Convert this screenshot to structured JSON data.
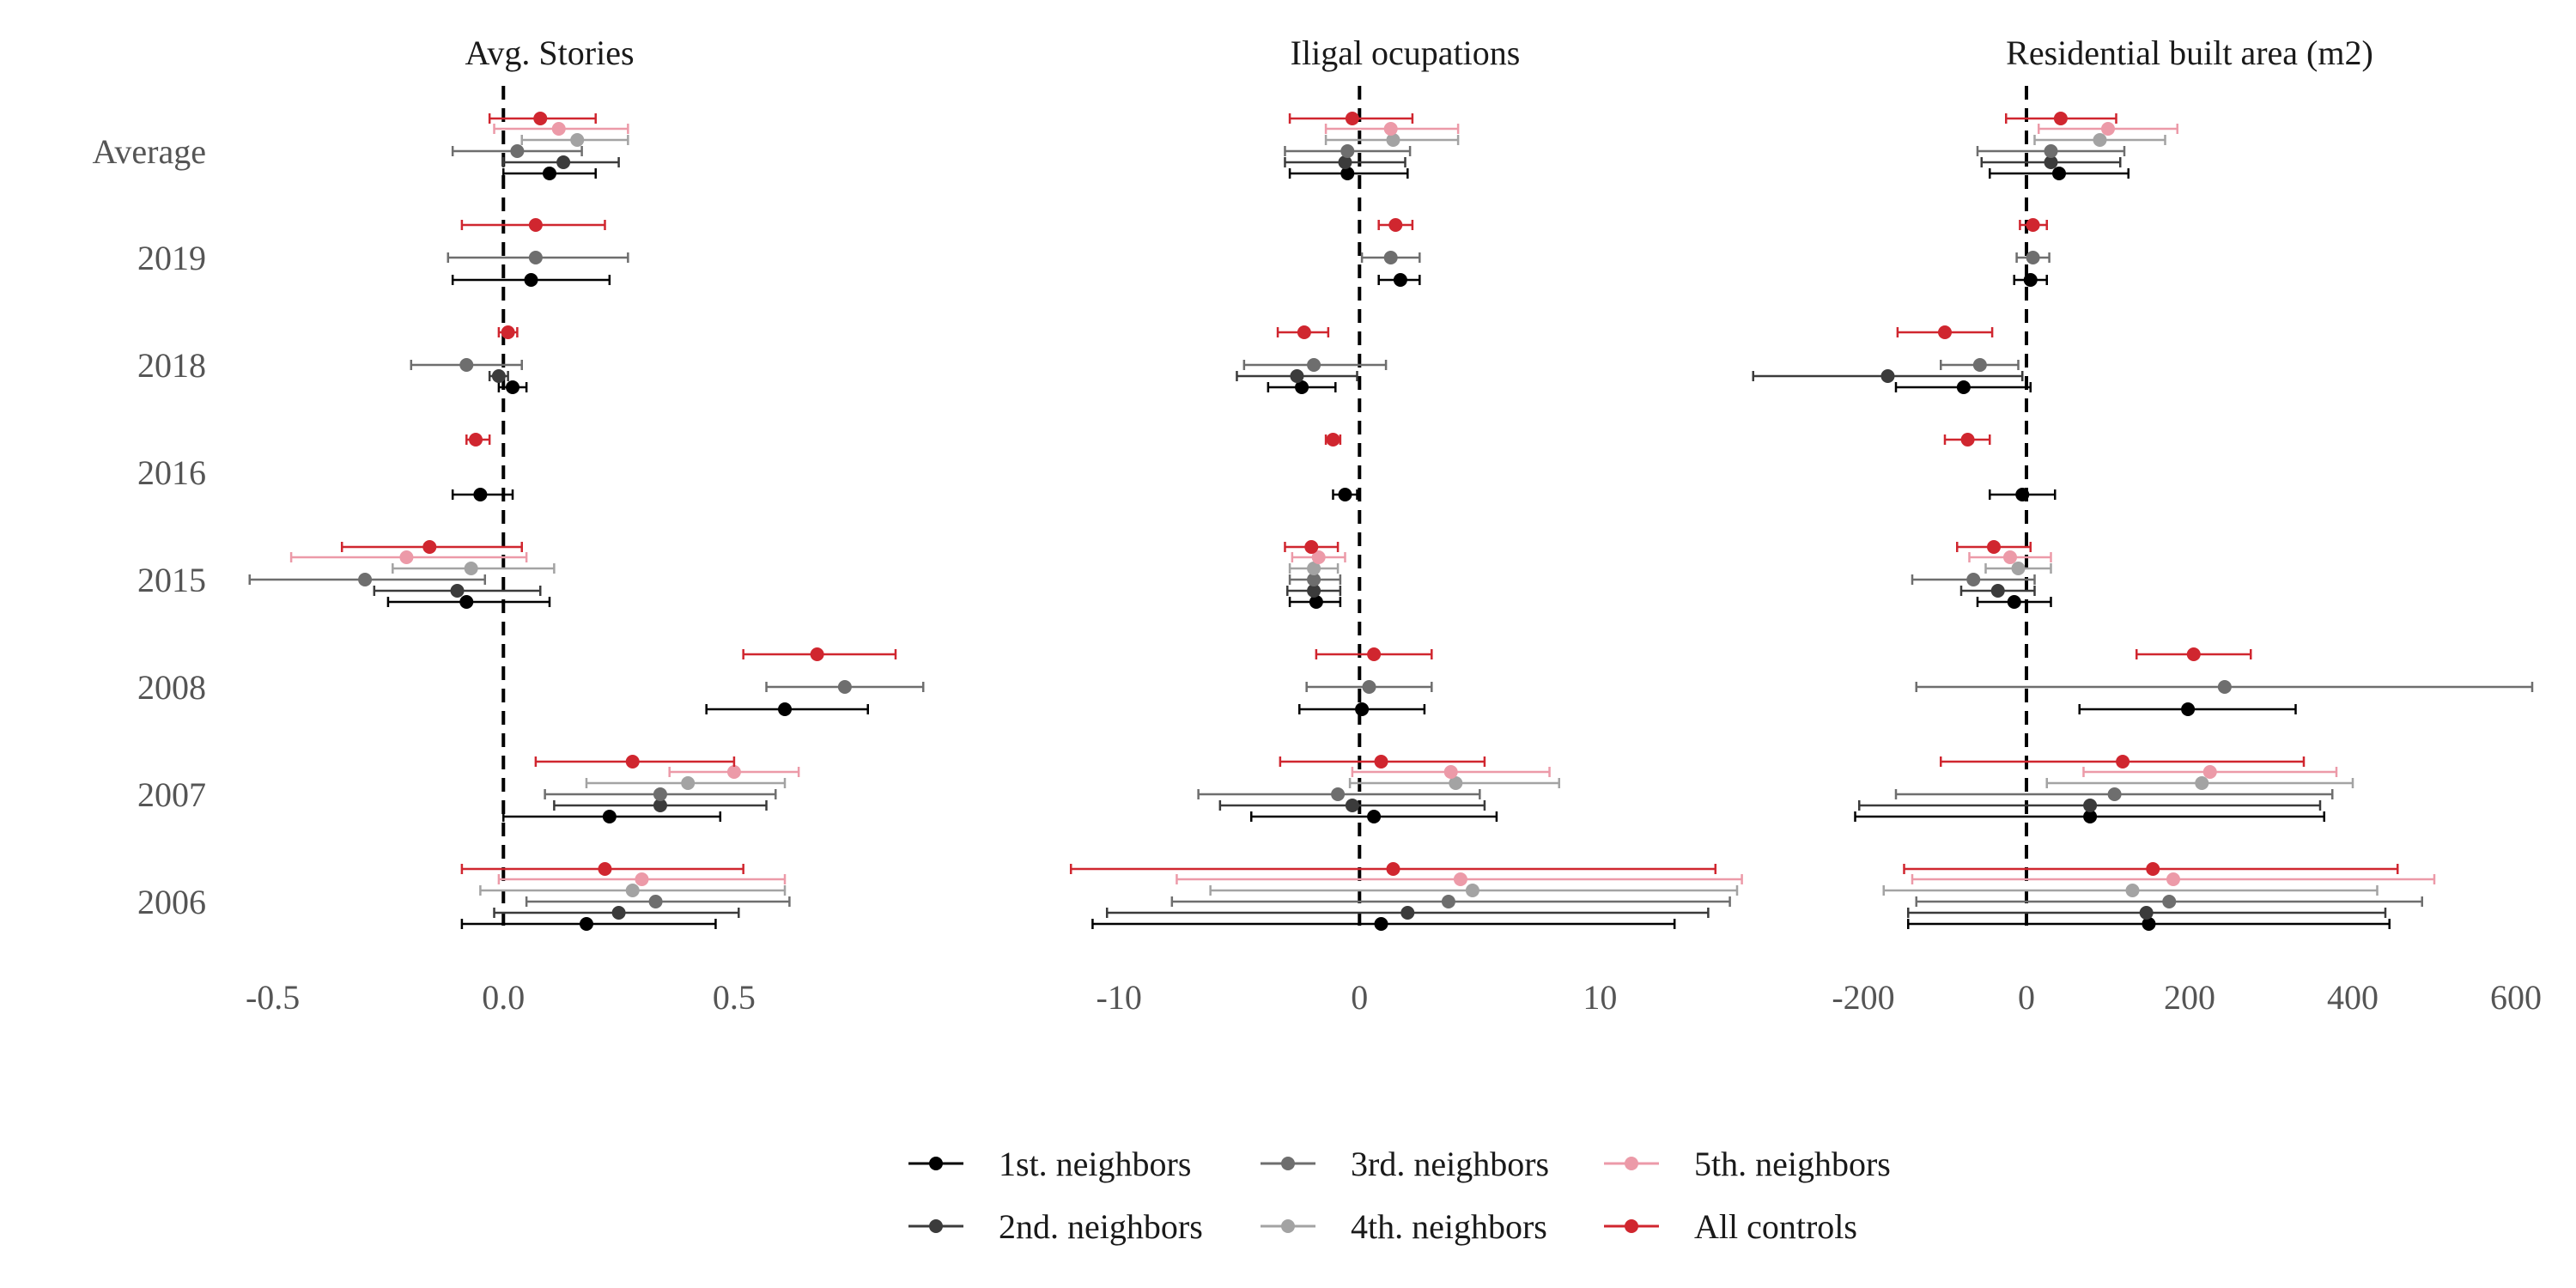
{
  "chart_data": {
    "type": "scatter",
    "subtype": "coefficient-plot-with-error-bars",
    "categories": [
      "Average",
      "2019",
      "2018",
      "2016",
      "2015",
      "2008",
      "2007",
      "2006"
    ],
    "legend": {
      "placement": "bottom",
      "entries": [
        {
          "name": "1st. neighbors",
          "color": "#000000"
        },
        {
          "name": "2nd. neighbors",
          "color": "#3b3b3b"
        },
        {
          "name": "3rd. neighbors",
          "color": "#6e6e6e"
        },
        {
          "name": "4th. neighbors",
          "color": "#a3a3a3"
        },
        {
          "name": "5th. neighbors",
          "color": "#ec9aa8"
        },
        {
          "name": "All controls",
          "color": "#d0262f"
        }
      ]
    },
    "reference_line": 0,
    "grid": false,
    "panels": [
      {
        "title": "Avg. Stories",
        "xlim": [
          -0.57,
          0.77
        ],
        "ticks": [
          -0.5,
          0.0,
          0.5
        ],
        "tick_labels": [
          "-0.5",
          "0.0",
          "0.5"
        ],
        "series": [
          {
            "name": "1st. neighbors",
            "points": [
              {
                "cat": "Average",
                "est": 0.1,
                "lo": 0.0,
                "hi": 0.2
              },
              {
                "cat": "2019",
                "est": 0.06,
                "lo": -0.11,
                "hi": 0.23
              },
              {
                "cat": "2018",
                "est": 0.02,
                "lo": -0.01,
                "hi": 0.05
              },
              {
                "cat": "2016",
                "est": -0.05,
                "lo": -0.11,
                "hi": 0.02
              },
              {
                "cat": "2015",
                "est": -0.08,
                "lo": -0.25,
                "hi": 0.1
              },
              {
                "cat": "2008",
                "est": 0.61,
                "lo": 0.44,
                "hi": 0.79
              },
              {
                "cat": "2007",
                "est": 0.23,
                "lo": 0.0,
                "hi": 0.47
              },
              {
                "cat": "2006",
                "est": 0.18,
                "lo": -0.09,
                "hi": 0.46
              }
            ]
          },
          {
            "name": "2nd. neighbors",
            "points": [
              {
                "cat": "Average",
                "est": 0.13,
                "lo": 0.0,
                "hi": 0.25
              },
              {
                "cat": "2018",
                "est": -0.01,
                "lo": -0.03,
                "hi": 0.01
              },
              {
                "cat": "2015",
                "est": -0.1,
                "lo": -0.28,
                "hi": 0.08
              },
              {
                "cat": "2007",
                "est": 0.34,
                "lo": 0.11,
                "hi": 0.57
              },
              {
                "cat": "2006",
                "est": 0.25,
                "lo": -0.02,
                "hi": 0.51
              }
            ]
          },
          {
            "name": "3rd. neighbors",
            "points": [
              {
                "cat": "Average",
                "est": 0.03,
                "lo": -0.11,
                "hi": 0.17
              },
              {
                "cat": "2019",
                "est": 0.07,
                "lo": -0.12,
                "hi": 0.27
              },
              {
                "cat": "2018",
                "est": -0.08,
                "lo": -0.2,
                "hi": 0.04
              },
              {
                "cat": "2015",
                "est": -0.3,
                "lo": -0.55,
                "hi": -0.04
              },
              {
                "cat": "2008",
                "est": 0.74,
                "lo": 0.57,
                "hi": 0.91
              },
              {
                "cat": "2007",
                "est": 0.34,
                "lo": 0.09,
                "hi": 0.59
              },
              {
                "cat": "2006",
                "est": 0.33,
                "lo": 0.05,
                "hi": 0.62
              }
            ]
          },
          {
            "name": "4th. neighbors",
            "points": [
              {
                "cat": "Average",
                "est": 0.16,
                "lo": 0.04,
                "hi": 0.27
              },
              {
                "cat": "2015",
                "est": -0.07,
                "lo": -0.24,
                "hi": 0.11
              },
              {
                "cat": "2007",
                "est": 0.4,
                "lo": 0.18,
                "hi": 0.61
              },
              {
                "cat": "2006",
                "est": 0.28,
                "lo": -0.05,
                "hi": 0.61
              }
            ]
          },
          {
            "name": "5th. neighbors",
            "points": [
              {
                "cat": "Average",
                "est": 0.12,
                "lo": -0.02,
                "hi": 0.27
              },
              {
                "cat": "2015",
                "est": -0.21,
                "lo": -0.46,
                "hi": 0.05
              },
              {
                "cat": "2007",
                "est": 0.5,
                "lo": 0.36,
                "hi": 0.64
              },
              {
                "cat": "2006",
                "est": 0.3,
                "lo": -0.01,
                "hi": 0.61
              }
            ]
          },
          {
            "name": "All controls",
            "points": [
              {
                "cat": "Average",
                "est": 0.08,
                "lo": -0.03,
                "hi": 0.2
              },
              {
                "cat": "2019",
                "est": 0.07,
                "lo": -0.09,
                "hi": 0.22
              },
              {
                "cat": "2018",
                "est": 0.01,
                "lo": -0.01,
                "hi": 0.03
              },
              {
                "cat": "2016",
                "est": -0.06,
                "lo": -0.08,
                "hi": -0.03
              },
              {
                "cat": "2015",
                "est": -0.16,
                "lo": -0.35,
                "hi": 0.04
              },
              {
                "cat": "2008",
                "est": 0.68,
                "lo": 0.52,
                "hi": 0.85
              },
              {
                "cat": "2007",
                "est": 0.28,
                "lo": 0.07,
                "hi": 0.5
              },
              {
                "cat": "2006",
                "est": 0.22,
                "lo": -0.09,
                "hi": 0.52
              }
            ]
          }
        ]
      },
      {
        "title": "Iligal ocupations",
        "xlim": [
          -12.4,
          16.2
        ],
        "ticks": [
          -10,
          0,
          10
        ],
        "tick_labels": [
          "-10",
          "0",
          "10"
        ],
        "series": [
          {
            "name": "1st. neighbors",
            "points": [
              {
                "cat": "Average",
                "est": -0.5,
                "lo": -2.9,
                "hi": 2.0
              },
              {
                "cat": "2019",
                "est": 1.7,
                "lo": 0.8,
                "hi": 2.5
              },
              {
                "cat": "2018",
                "est": -2.4,
                "lo": -3.8,
                "hi": -1.0
              },
              {
                "cat": "2016",
                "est": -0.6,
                "lo": -1.1,
                "hi": -0.1
              },
              {
                "cat": "2015",
                "est": -1.8,
                "lo": -2.9,
                "hi": -0.8
              },
              {
                "cat": "2008",
                "est": 0.1,
                "lo": -2.5,
                "hi": 2.7
              },
              {
                "cat": "2007",
                "est": 0.6,
                "lo": -4.5,
                "hi": 5.7
              },
              {
                "cat": "2006",
                "est": 0.9,
                "lo": -11.1,
                "hi": 13.1
              }
            ]
          },
          {
            "name": "2nd. neighbors",
            "points": [
              {
                "cat": "Average",
                "est": -0.6,
                "lo": -3.1,
                "hi": 1.9
              },
              {
                "cat": "2018",
                "est": -2.6,
                "lo": -5.1,
                "hi": -0.1
              },
              {
                "cat": "2015",
                "est": -1.9,
                "lo": -3.0,
                "hi": -0.8
              },
              {
                "cat": "2007",
                "est": -0.3,
                "lo": -5.8,
                "hi": 5.2
              },
              {
                "cat": "2006",
                "est": 2.0,
                "lo": -10.5,
                "hi": 14.5
              }
            ]
          },
          {
            "name": "3rd. neighbors",
            "points": [
              {
                "cat": "Average",
                "est": -0.5,
                "lo": -3.1,
                "hi": 2.1
              },
              {
                "cat": "2019",
                "est": 1.3,
                "lo": 0.1,
                "hi": 2.5
              },
              {
                "cat": "2018",
                "est": -1.9,
                "lo": -4.8,
                "hi": 1.1
              },
              {
                "cat": "2015",
                "est": -1.9,
                "lo": -2.9,
                "hi": -0.8
              },
              {
                "cat": "2008",
                "est": 0.4,
                "lo": -2.2,
                "hi": 3.0
              },
              {
                "cat": "2007",
                "est": -0.9,
                "lo": -6.7,
                "hi": 5.0
              },
              {
                "cat": "2006",
                "est": 3.7,
                "lo": -7.8,
                "hi": 15.4
              }
            ]
          },
          {
            "name": "4th. neighbors",
            "points": [
              {
                "cat": "Average",
                "est": 1.4,
                "lo": -1.4,
                "hi": 4.1
              },
              {
                "cat": "2015",
                "est": -1.9,
                "lo": -2.9,
                "hi": -0.9
              },
              {
                "cat": "2007",
                "est": 4.0,
                "lo": -0.4,
                "hi": 8.3
              },
              {
                "cat": "2006",
                "est": 4.7,
                "lo": -6.2,
                "hi": 15.7
              }
            ]
          },
          {
            "name": "5th. neighbors",
            "points": [
              {
                "cat": "Average",
                "est": 1.3,
                "lo": -1.4,
                "hi": 4.1
              },
              {
                "cat": "2015",
                "est": -1.7,
                "lo": -2.8,
                "hi": -0.6
              },
              {
                "cat": "2007",
                "est": 3.8,
                "lo": -0.3,
                "hi": 7.9
              },
              {
                "cat": "2006",
                "est": 4.2,
                "lo": -7.6,
                "hi": 15.9
              }
            ]
          },
          {
            "name": "All controls",
            "points": [
              {
                "cat": "Average",
                "est": -0.3,
                "lo": -2.9,
                "hi": 2.2
              },
              {
                "cat": "2019",
                "est": 1.5,
                "lo": 0.8,
                "hi": 2.2
              },
              {
                "cat": "2018",
                "est": -2.3,
                "lo": -3.4,
                "hi": -1.3
              },
              {
                "cat": "2016",
                "est": -1.1,
                "lo": -1.4,
                "hi": -0.8
              },
              {
                "cat": "2015",
                "est": -2.0,
                "lo": -3.1,
                "hi": -0.9
              },
              {
                "cat": "2008",
                "est": 0.6,
                "lo": -1.8,
                "hi": 3.0
              },
              {
                "cat": "2007",
                "est": 0.9,
                "lo": -3.3,
                "hi": 5.2
              },
              {
                "cat": "2006",
                "est": 1.4,
                "lo": -12.0,
                "hi": 14.8
              }
            ]
          }
        ]
      },
      {
        "title": "Residential built area (m2)",
        "xlim": [
          -240,
          640
        ],
        "ticks": [
          -200,
          0,
          200,
          400,
          600
        ],
        "tick_labels": [
          "-200",
          "0",
          "200",
          "400",
          "600"
        ],
        "series": [
          {
            "name": "1st. neighbors",
            "points": [
              {
                "cat": "Average",
                "est": 40,
                "lo": -45,
                "hi": 125
              },
              {
                "cat": "2019",
                "est": 5,
                "lo": -15,
                "hi": 25
              },
              {
                "cat": "2018",
                "est": -77,
                "lo": -160,
                "hi": 5
              },
              {
                "cat": "2016",
                "est": -5,
                "lo": -45,
                "hi": 35
              },
              {
                "cat": "2015",
                "est": -15,
                "lo": -60,
                "hi": 30
              },
              {
                "cat": "2008",
                "est": 198,
                "lo": 65,
                "hi": 330
              },
              {
                "cat": "2007",
                "est": 78,
                "lo": -210,
                "hi": 365
              },
              {
                "cat": "2006",
                "est": 150,
                "lo": -145,
                "hi": 445
              }
            ]
          },
          {
            "name": "2nd. neighbors",
            "points": [
              {
                "cat": "Average",
                "est": 30,
                "lo": -55,
                "hi": 115
              },
              {
                "cat": "2018",
                "est": -170,
                "lo": -335,
                "hi": -5
              },
              {
                "cat": "2015",
                "est": -35,
                "lo": -80,
                "hi": 10
              },
              {
                "cat": "2007",
                "est": 78,
                "lo": -205,
                "hi": 360
              },
              {
                "cat": "2006",
                "est": 147,
                "lo": -145,
                "hi": 440
              }
            ]
          },
          {
            "name": "3rd. neighbors",
            "points": [
              {
                "cat": "Average",
                "est": 30,
                "lo": -60,
                "hi": 120
              },
              {
                "cat": "2019",
                "est": 8,
                "lo": -12,
                "hi": 28
              },
              {
                "cat": "2018",
                "est": -57,
                "lo": -105,
                "hi": -10
              },
              {
                "cat": "2015",
                "est": -65,
                "lo": -140,
                "hi": 10
              },
              {
                "cat": "2008",
                "est": 243,
                "lo": -135,
                "hi": 620
              },
              {
                "cat": "2007",
                "est": 108,
                "lo": -160,
                "hi": 375
              },
              {
                "cat": "2006",
                "est": 175,
                "lo": -135,
                "hi": 485
              }
            ]
          },
          {
            "name": "4th. neighbors",
            "points": [
              {
                "cat": "Average",
                "est": 90,
                "lo": 10,
                "hi": 170
              },
              {
                "cat": "2015",
                "est": -10,
                "lo": -50,
                "hi": 30
              },
              {
                "cat": "2007",
                "est": 215,
                "lo": 25,
                "hi": 400
              },
              {
                "cat": "2006",
                "est": 130,
                "lo": -175,
                "hi": 430
              }
            ]
          },
          {
            "name": "5th. neighbors",
            "points": [
              {
                "cat": "Average",
                "est": 100,
                "lo": 15,
                "hi": 185
              },
              {
                "cat": "2015",
                "est": -20,
                "lo": -70,
                "hi": 30
              },
              {
                "cat": "2007",
                "est": 225,
                "lo": 70,
                "hi": 380
              },
              {
                "cat": "2006",
                "est": 180,
                "lo": -140,
                "hi": 500
              }
            ]
          },
          {
            "name": "All controls",
            "points": [
              {
                "cat": "Average",
                "est": 42,
                "lo": -25,
                "hi": 110
              },
              {
                "cat": "2019",
                "est": 8,
                "lo": -8,
                "hi": 25
              },
              {
                "cat": "2018",
                "est": -100,
                "lo": -158,
                "hi": -42
              },
              {
                "cat": "2016",
                "est": -72,
                "lo": -100,
                "hi": -45
              },
              {
                "cat": "2015",
                "est": -40,
                "lo": -85,
                "hi": 5
              },
              {
                "cat": "2008",
                "est": 205,
                "lo": 135,
                "hi": 275
              },
              {
                "cat": "2007",
                "est": 118,
                "lo": -105,
                "hi": 340
              },
              {
                "cat": "2006",
                "est": 155,
                "lo": -150,
                "hi": 455
              }
            ]
          }
        ]
      }
    ]
  }
}
